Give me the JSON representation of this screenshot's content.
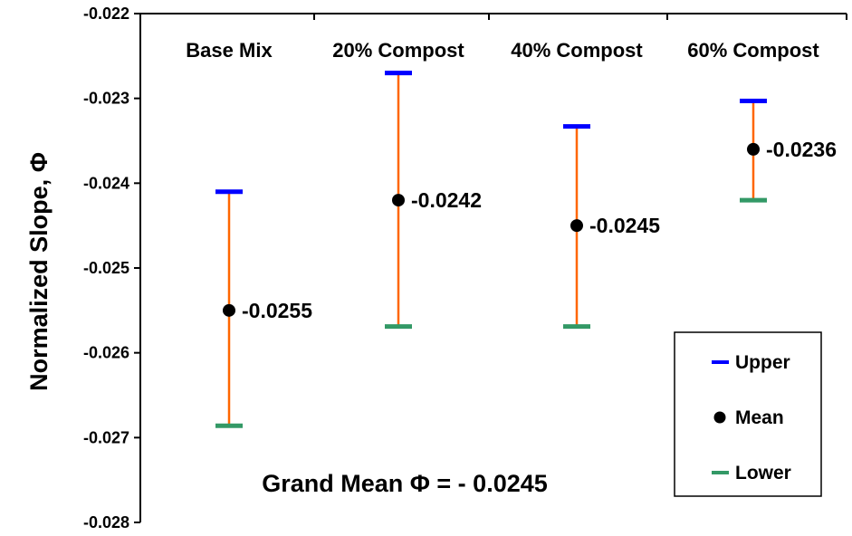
{
  "chart_data": {
    "type": "error-bar",
    "ylabel": "Normalized Slope, Φ",
    "ylim": [
      -0.028,
      -0.022
    ],
    "yticks": [
      -0.022,
      -0.023,
      -0.024,
      -0.025,
      -0.026,
      -0.027,
      -0.028
    ],
    "ytick_labels": [
      "-0.022",
      "-0.023",
      "-0.024",
      "-0.025",
      "-0.026",
      "-0.027",
      "-0.028"
    ],
    "categories": [
      "Base Mix",
      "20% Compost",
      "40% Compost",
      "60% Compost"
    ],
    "series": [
      {
        "name": "Upper",
        "values": [
          -0.0241,
          -0.0227,
          -0.02333,
          -0.02303
        ]
      },
      {
        "name": "Mean",
        "values": [
          -0.0255,
          -0.0242,
          -0.0245,
          -0.0236
        ]
      },
      {
        "name": "Lower",
        "values": [
          -0.02686,
          -0.02569,
          -0.02569,
          -0.0242
        ]
      }
    ],
    "data_labels": [
      "-0.0255",
      "-0.0242",
      "-0.0245",
      "-0.0236"
    ],
    "annotation": "Grand Mean Φ = - 0.0245",
    "legend": {
      "placement": "bottom-right",
      "entries": [
        "Upper",
        "Mean",
        "Lower"
      ]
    },
    "grid": false,
    "colors": {
      "upper": "#0000ff",
      "mean": "#000000",
      "lower": "#339966",
      "range": "#ff6600",
      "axis": "#000000"
    }
  }
}
